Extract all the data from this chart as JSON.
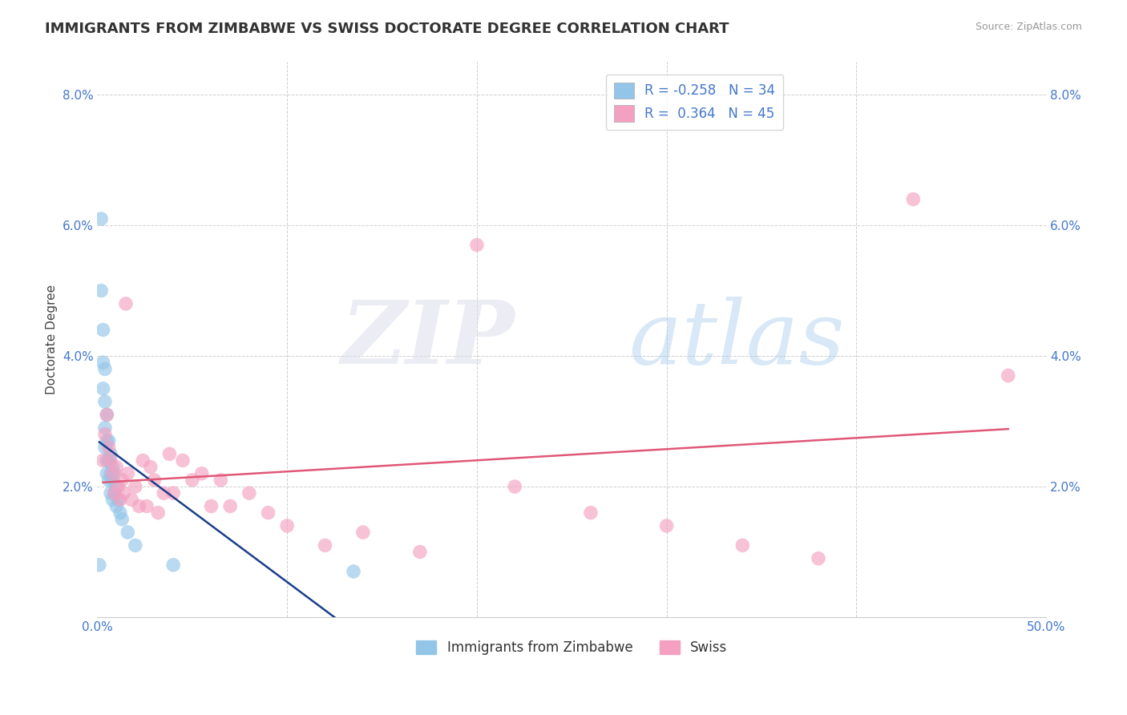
{
  "title": "IMMIGRANTS FROM ZIMBABWE VS SWISS DOCTORATE DEGREE CORRELATION CHART",
  "source": "Source: ZipAtlas.com",
  "xlabel": "",
  "ylabel": "Doctorate Degree",
  "xlim": [
    0.0,
    0.5
  ],
  "ylim": [
    0.0,
    0.085
  ],
  "xticks": [
    0.0,
    0.5
  ],
  "xticklabels": [
    "0.0%",
    "50.0%"
  ],
  "yticks": [
    0.0,
    0.02,
    0.04,
    0.06,
    0.08
  ],
  "yticklabels": [
    "",
    "2.0%",
    "4.0%",
    "6.0%",
    "8.0%"
  ],
  "right_yticks": [
    0.0,
    0.02,
    0.04,
    0.06,
    0.08
  ],
  "right_yticklabels": [
    "",
    "2.0%",
    "4.0%",
    "6.0%",
    "8.0%"
  ],
  "legend_r_blue": "-0.258",
  "legend_n_blue": "34",
  "legend_r_pink": "0.364",
  "legend_n_pink": "45",
  "blue_color": "#92C5E8",
  "pink_color": "#F4A0C0",
  "blue_line_color": "#1A3E8A",
  "pink_line_color": "#E05878",
  "background_color": "#FFFFFF",
  "grid_color": "#BBBBBB",
  "blue_scatter_x": [
    0.001,
    0.002,
    0.002,
    0.003,
    0.003,
    0.003,
    0.004,
    0.004,
    0.004,
    0.004,
    0.005,
    0.005,
    0.005,
    0.005,
    0.006,
    0.006,
    0.006,
    0.007,
    0.007,
    0.007,
    0.008,
    0.008,
    0.008,
    0.009,
    0.009,
    0.01,
    0.01,
    0.011,
    0.012,
    0.013,
    0.016,
    0.02,
    0.04,
    0.135
  ],
  "blue_scatter_y": [
    0.008,
    0.061,
    0.05,
    0.044,
    0.039,
    0.035,
    0.038,
    0.033,
    0.029,
    0.026,
    0.031,
    0.027,
    0.024,
    0.022,
    0.027,
    0.024,
    0.021,
    0.025,
    0.022,
    0.019,
    0.023,
    0.021,
    0.018,
    0.022,
    0.019,
    0.02,
    0.017,
    0.018,
    0.016,
    0.015,
    0.013,
    0.011,
    0.008,
    0.007
  ],
  "pink_scatter_x": [
    0.003,
    0.004,
    0.005,
    0.006,
    0.007,
    0.008,
    0.009,
    0.01,
    0.011,
    0.012,
    0.013,
    0.014,
    0.015,
    0.016,
    0.018,
    0.02,
    0.022,
    0.024,
    0.026,
    0.028,
    0.03,
    0.032,
    0.035,
    0.038,
    0.04,
    0.045,
    0.05,
    0.055,
    0.06,
    0.065,
    0.07,
    0.08,
    0.09,
    0.1,
    0.12,
    0.14,
    0.17,
    0.2,
    0.22,
    0.26,
    0.3,
    0.34,
    0.38,
    0.43,
    0.48
  ],
  "pink_scatter_y": [
    0.024,
    0.028,
    0.031,
    0.026,
    0.024,
    0.022,
    0.019,
    0.023,
    0.02,
    0.018,
    0.021,
    0.019,
    0.048,
    0.022,
    0.018,
    0.02,
    0.017,
    0.024,
    0.017,
    0.023,
    0.021,
    0.016,
    0.019,
    0.025,
    0.019,
    0.024,
    0.021,
    0.022,
    0.017,
    0.021,
    0.017,
    0.019,
    0.016,
    0.014,
    0.011,
    0.013,
    0.01,
    0.057,
    0.02,
    0.016,
    0.014,
    0.011,
    0.009,
    0.064,
    0.037
  ],
  "title_fontsize": 13,
  "axis_label_fontsize": 11,
  "tick_fontsize": 11,
  "legend_fontsize": 12
}
